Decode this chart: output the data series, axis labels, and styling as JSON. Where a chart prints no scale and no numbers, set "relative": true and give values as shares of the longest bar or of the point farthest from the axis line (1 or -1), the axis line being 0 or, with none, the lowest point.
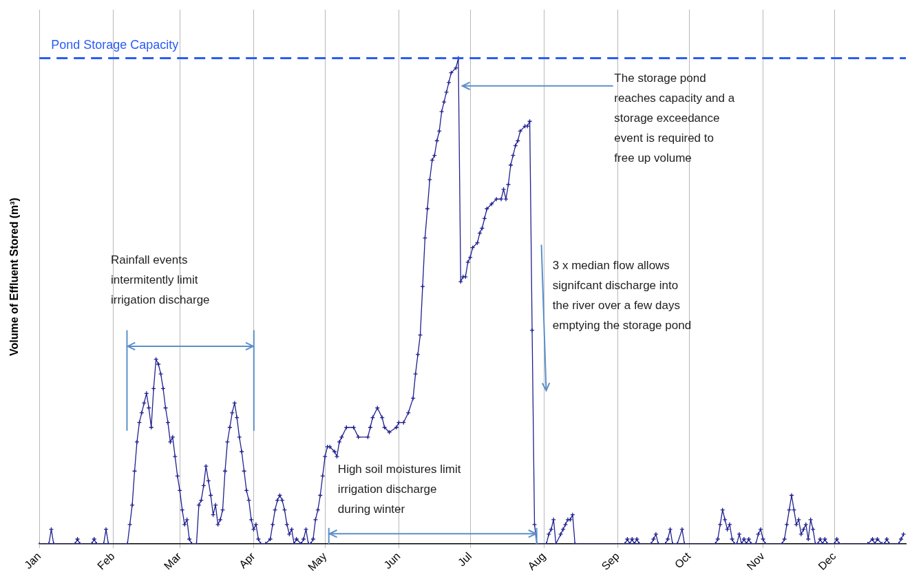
{
  "chart_data": {
    "type": "line",
    "ylabel": "Volume of Effluent Stored (m³)",
    "relative": true,
    "grid": "x",
    "marker": "cross",
    "legend": false,
    "xlim": [
      "--01-01",
      "--12-31"
    ],
    "xticks": [
      {
        "value": "--01-01",
        "label": "Jan"
      },
      {
        "value": "--02-01",
        "label": "Feb"
      },
      {
        "value": "--03-01",
        "label": "Mar"
      },
      {
        "value": "--04-01",
        "label": "Apr"
      },
      {
        "value": "--05-01",
        "label": "May"
      },
      {
        "value": "--06-01",
        "label": "Jun"
      },
      {
        "value": "--07-01",
        "label": "Jul"
      },
      {
        "value": "--08-01",
        "label": "Aug"
      },
      {
        "value": "--09-01",
        "label": "Sep"
      },
      {
        "value": "--10-01",
        "label": "Oct"
      },
      {
        "value": "--11-01",
        "label": "Nov"
      },
      {
        "value": "--12-01",
        "label": "Dec"
      }
    ],
    "x": [
      "--01-01",
      "--01-05",
      "--01-06",
      "--01-07",
      "--01-16",
      "--01-17",
      "--01-18",
      "--01-23",
      "--01-24",
      "--01-25",
      "--01-28",
      "--01-29",
      "--01-30",
      "--02-07",
      "--02-08",
      "--02-09",
      "--02-10",
      "--02-11",
      "--02-12",
      "--02-13",
      "--02-14",
      "--02-15",
      "--02-16",
      "--02-17",
      "--02-18",
      "--02-19",
      "--02-20",
      "--02-21",
      "--02-22",
      "--02-23",
      "--02-24",
      "--02-25",
      "--02-26",
      "--02-27",
      "--02-28",
      "--03-01",
      "--03-02",
      "--03-03",
      "--03-04",
      "--03-05",
      "--03-06",
      "--03-08",
      "--03-09",
      "--03-10",
      "--03-11",
      "--03-12",
      "--03-13",
      "--03-14",
      "--03-15",
      "--03-16",
      "--03-17",
      "--03-18",
      "--03-19",
      "--03-20",
      "--03-21",
      "--03-22",
      "--03-23",
      "--03-24",
      "--03-25",
      "--03-26",
      "--03-27",
      "--03-28",
      "--03-29",
      "--03-30",
      "--03-31",
      "--04-01",
      "--04-02",
      "--04-03",
      "--04-04",
      "--04-06",
      "--04-08",
      "--04-09",
      "--04-10",
      "--04-11",
      "--04-12",
      "--04-13",
      "--04-14",
      "--04-15",
      "--04-16",
      "--04-17",
      "--04-18",
      "--04-19",
      "--04-21",
      "--04-22",
      "--04-23",
      "--04-24",
      "--04-25",
      "--04-26",
      "--04-27",
      "--04-28",
      "--04-29",
      "--04-30",
      "--05-01",
      "--05-02",
      "--05-03",
      "--05-05",
      "--05-06",
      "--05-07",
      "--05-08",
      "--05-10",
      "--05-13",
      "--05-15",
      "--05-19",
      "--05-20",
      "--05-21",
      "--05-23",
      "--05-25",
      "--05-26",
      "--05-28",
      "--05-31",
      "--06-01",
      "--06-03",
      "--06-05",
      "--06-07",
      "--06-08",
      "--06-09",
      "--06-10",
      "--06-11",
      "--06-12",
      "--06-13",
      "--06-14",
      "--06-15",
      "--06-16",
      "--06-17",
      "--06-18",
      "--06-19",
      "--06-20",
      "--06-21",
      "--06-22",
      "--06-23",
      "--06-25",
      "--06-26",
      "--06-27",
      "--06-28",
      "--06-29",
      "--06-30",
      "--07-01",
      "--07-02",
      "--07-04",
      "--07-05",
      "--07-06",
      "--07-07",
      "--07-08",
      "--07-10",
      "--07-12",
      "--07-14",
      "--07-15",
      "--07-16",
      "--07-17",
      "--07-18",
      "--07-19",
      "--07-20",
      "--07-21",
      "--07-22",
      "--07-24",
      "--07-25",
      "--07-26",
      "--07-27",
      "--07-28",
      "--07-29",
      "--08-02",
      "--08-03",
      "--08-04",
      "--08-05",
      "--08-06",
      "--08-08",
      "--08-09",
      "--08-10",
      "--08-11",
      "--08-12",
      "--08-13",
      "--08-14",
      "--09-04",
      "--09-05",
      "--09-06",
      "--09-07",
      "--09-08",
      "--09-09",
      "--09-10",
      "--09-15",
      "--09-16",
      "--09-17",
      "--09-18",
      "--09-21",
      "--09-22",
      "--09-23",
      "--09-24",
      "--09-26",
      "--09-28",
      "--09-29",
      "--10-12",
      "--10-13",
      "--10-14",
      "--10-15",
      "--10-16",
      "--10-17",
      "--10-18",
      "--10-19",
      "--10-20",
      "--10-21",
      "--10-22",
      "--10-23",
      "--10-24",
      "--10-25",
      "--10-26",
      "--10-27",
      "--10-29",
      "--10-30",
      "--10-31",
      "--11-01",
      "--11-02",
      "--11-09",
      "--11-10",
      "--11-11",
      "--11-12",
      "--11-13",
      "--11-14",
      "--11-15",
      "--11-16",
      "--11-17",
      "--11-18",
      "--11-19",
      "--11-20",
      "--11-21",
      "--11-22",
      "--11-23",
      "--11-24",
      "--11-25",
      "--11-26",
      "--11-27",
      "--11-28",
      "--12-01",
      "--12-02",
      "--12-03",
      "--12-15",
      "--12-17",
      "--12-18",
      "--12-19",
      "--12-21",
      "--12-22",
      "--12-23",
      "--12-24",
      "--12-28",
      "--12-29",
      "--12-30"
    ],
    "series": [
      {
        "color": "#1f1f8f",
        "values": [
          0,
          0,
          0.03,
          0,
          0,
          0.01,
          0,
          0,
          0.01,
          0,
          0,
          0.03,
          0,
          0,
          0.04,
          0.08,
          0.15,
          0.21,
          0.25,
          0.27,
          0.29,
          0.31,
          0.28,
          0.24,
          0.32,
          0.38,
          0.37,
          0.35,
          0.32,
          0.28,
          0.25,
          0.21,
          0.22,
          0.18,
          0.14,
          0.11,
          0.07,
          0.04,
          0.05,
          0.01,
          0,
          0,
          0.08,
          0.09,
          0.12,
          0.16,
          0.13,
          0.1,
          0.06,
          0.08,
          0.04,
          0.05,
          0.07,
          0.15,
          0.21,
          0.24,
          0.27,
          0.29,
          0.26,
          0.22,
          0.19,
          0.15,
          0.11,
          0.09,
          0.05,
          0.03,
          0.04,
          0.01,
          0,
          0,
          0.01,
          0.04,
          0.07,
          0.09,
          0.1,
          0.09,
          0.07,
          0.04,
          0.02,
          0.03,
          0,
          0.01,
          0,
          0.01,
          0.03,
          0,
          0,
          0.01,
          0.05,
          0.07,
          0.1,
          0.14,
          0.18,
          0.2,
          0.2,
          0.19,
          0.18,
          0.21,
          0.22,
          0.24,
          0.24,
          0.22,
          0.22,
          0.24,
          0.26,
          0.28,
          0.26,
          0.24,
          0.23,
          0.24,
          0.25,
          0.25,
          0.27,
          0.3,
          0.35,
          0.39,
          0.43,
          0.53,
          0.63,
          0.69,
          0.75,
          0.79,
          0.8,
          0.83,
          0.85,
          0.89,
          0.91,
          0.93,
          0.95,
          0.97,
          0.98,
          1,
          0.54,
          0.55,
          0.55,
          0.58,
          0.59,
          0.61,
          0.62,
          0.64,
          0.65,
          0.67,
          0.69,
          0.7,
          0.71,
          0.71,
          0.73,
          0.71,
          0.74,
          0.78,
          0.8,
          0.82,
          0.83,
          0.85,
          0.86,
          0.86,
          0.87,
          0.44,
          0.04,
          0,
          0,
          0.02,
          0.03,
          0.05,
          0,
          0.02,
          0.03,
          0.04,
          0.05,
          0.05,
          0.06,
          0,
          0,
          0.01,
          0,
          0.01,
          0,
          0.01,
          0,
          0,
          0.01,
          0.02,
          0,
          0,
          0.01,
          0.03,
          0,
          0,
          0.03,
          0,
          0,
          0.01,
          0.04,
          0.07,
          0.05,
          0.03,
          0.04,
          0.01,
          0,
          0,
          0.02,
          0,
          0.01,
          0,
          0.01,
          0,
          0,
          0.02,
          0.03,
          0.01,
          0,
          0,
          0.01,
          0.04,
          0.07,
          0.1,
          0.07,
          0.04,
          0.05,
          0.02,
          0.03,
          0.04,
          0.01,
          0.05,
          0.03,
          0,
          0,
          0.01,
          0,
          0.01,
          0,
          0,
          0.01,
          0,
          0,
          0.01,
          0,
          0.01,
          0,
          0,
          0.01,
          0,
          0,
          0.01,
          0.02
        ]
      }
    ],
    "ref_lines": [
      {
        "axis": "y",
        "value": 1,
        "label": "Pond Storage Capacity",
        "color": "#2a5cf5",
        "line_style": "dashed"
      }
    ],
    "annotations": [
      "Rainfall events intermitently limit irrigation discharge",
      "High soil moistures limit irrigation discharge during winter",
      "The storage pond reaches capacity and a storage exceedance event is required to free up volume",
      "3 x median flow allows signifcant discharge into the river over a few days emptying the storage pond"
    ]
  }
}
